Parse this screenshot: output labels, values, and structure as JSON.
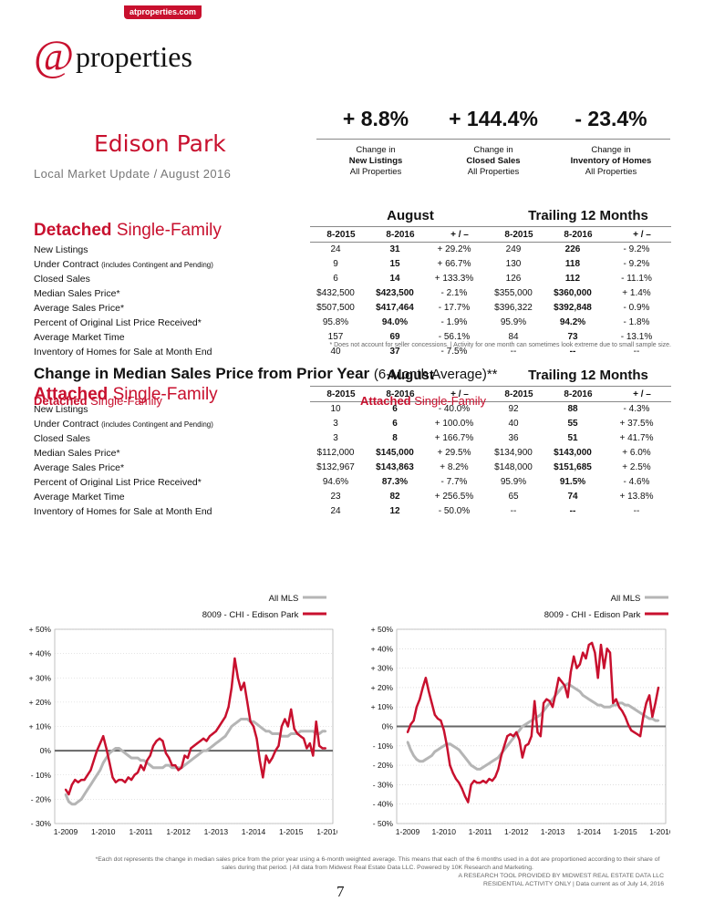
{
  "brand": {
    "tag": "atproperties.com",
    "at": "@",
    "name": "properties"
  },
  "header": {
    "city": "Edison Park",
    "subtitle": "Local Market Update / August 2016"
  },
  "kpis": [
    {
      "value": "+ 8.8%",
      "l1": "Change in",
      "l2": "New Listings",
      "l3": "All Properties"
    },
    {
      "value": "+ 144.4%",
      "l1": "Change in",
      "l2": "Closed Sales",
      "l3": "All Properties"
    },
    {
      "value": "- 23.4%",
      "l1": "Change in",
      "l2": "Inventory of Homes",
      "l3": "All Properties"
    }
  ],
  "group_labels": {
    "august": "August",
    "trailing": "Trailing 12 Months"
  },
  "columns": [
    "8-2015",
    "8-2016",
    "+ / –",
    "8-2015",
    "8-2016",
    "+ / –"
  ],
  "row_labels": [
    "New Listings",
    "Under Contract",
    "(includes Contingent and Pending)",
    "Closed Sales",
    "Median Sales Price*",
    "Average Sales Price*",
    "Percent of Original List Price Received*",
    "Average Market Time",
    "Inventory of Homes for Sale at Month End"
  ],
  "detached": {
    "title_bold": "Detached",
    "title_rest": "Single-Family",
    "rows": [
      [
        "24",
        "31",
        "+ 29.2%",
        "249",
        "226",
        "- 9.2%"
      ],
      [
        "9",
        "15",
        "+ 66.7%",
        "130",
        "118",
        "- 9.2%"
      ],
      [
        "6",
        "14",
        "+ 133.3%",
        "126",
        "112",
        "- 11.1%"
      ],
      [
        "$432,500",
        "$423,500",
        "- 2.1%",
        "$355,000",
        "$360,000",
        "+ 1.4%"
      ],
      [
        "$507,500",
        "$417,464",
        "- 17.7%",
        "$396,322",
        "$392,848",
        "- 0.9%"
      ],
      [
        "95.8%",
        "94.0%",
        "- 1.9%",
        "95.9%",
        "94.2%",
        "- 1.8%"
      ],
      [
        "157",
        "69",
        "- 56.1%",
        "84",
        "73",
        "- 13.1%"
      ],
      [
        "40",
        "37",
        "- 7.5%",
        "--",
        "--",
        "--"
      ]
    ]
  },
  "attached": {
    "title_bold": "Attached",
    "title_rest": "Single-Family",
    "rows": [
      [
        "10",
        "6",
        "- 40.0%",
        "92",
        "88",
        "- 4.3%"
      ],
      [
        "3",
        "6",
        "+ 100.0%",
        "40",
        "55",
        "+ 37.5%"
      ],
      [
        "3",
        "8",
        "+ 166.7%",
        "36",
        "51",
        "+ 41.7%"
      ],
      [
        "$112,000",
        "$145,000",
        "+ 29.5%",
        "$134,900",
        "$143,000",
        "+ 6.0%"
      ],
      [
        "$132,967",
        "$143,863",
        "+ 8.2%",
        "$148,000",
        "$151,685",
        "+ 2.5%"
      ],
      [
        "94.6%",
        "87.3%",
        "- 7.7%",
        "95.9%",
        "91.5%",
        "- 4.6%"
      ],
      [
        "23",
        "82",
        "+ 256.5%",
        "65",
        "74",
        "+ 13.8%"
      ],
      [
        "24",
        "12",
        "- 50.0%",
        "--",
        "--",
        "--"
      ]
    ]
  },
  "footnote1": "* Does not account for seller concessions. | Activity for one month can sometimes look extreme due to small sample size.",
  "chart_section": {
    "title": "Change in Median Sales Price from Prior Year",
    "title_suffix": "(6-Month Average)**"
  },
  "chart_data": [
    {
      "type": "line",
      "title_bold": "Detached",
      "title_rest": "Single-Family",
      "legend": [
        "All MLS",
        "8009 - CHI - Edison Park"
      ],
      "ylim": [
        -30,
        50
      ],
      "yticks": [
        "+ 50%",
        "+ 40%",
        "+ 30%",
        "+ 20%",
        "+ 10%",
        "0%",
        "- 10%",
        "- 20%",
        "- 30%"
      ],
      "xticks": [
        "1-2009",
        "1-2010",
        "1-2011",
        "1-2012",
        "1-2013",
        "1-2014",
        "1-2015",
        "1-2016"
      ],
      "colors": {
        "mls": "#b5b5b5",
        "local": "#c8102e"
      },
      "series": [
        {
          "name": "All MLS",
          "values": [
            -18,
            -21,
            -22,
            -22,
            -21,
            -20,
            -18,
            -16,
            -14,
            -12,
            -10,
            -8,
            -5,
            -3,
            -1,
            0,
            1,
            1,
            0,
            -1,
            -2,
            -3,
            -3,
            -3,
            -4,
            -4,
            -5,
            -6,
            -7,
            -7,
            -7,
            -7,
            -6,
            -6,
            -7,
            -7,
            -7,
            -7,
            -6,
            -5,
            -4,
            -3,
            -2,
            -1,
            0,
            0,
            1,
            2,
            3,
            4,
            5,
            6,
            8,
            10,
            11,
            12,
            13,
            13,
            13,
            12,
            12,
            11,
            10,
            9,
            8,
            8,
            7,
            7,
            7,
            6,
            6,
            6,
            7,
            7,
            7,
            8,
            8,
            8,
            8,
            8,
            7,
            7,
            8,
            8
          ]
        },
        {
          "name": "8009 - CHI - Edison Park",
          "values": [
            -16,
            -18,
            -14,
            -12,
            -13,
            -12,
            -12,
            -10,
            -8,
            -4,
            0,
            3,
            6,
            1,
            -5,
            -11,
            -13,
            -12,
            -12,
            -13,
            -11,
            -12,
            -10,
            -9,
            -6,
            -8,
            -4,
            -2,
            2,
            4,
            5,
            4,
            -1,
            -3,
            -6,
            -6,
            -8,
            -7,
            -2,
            -3,
            1,
            2,
            3,
            4,
            5,
            4,
            6,
            7,
            8,
            10,
            12,
            14,
            18,
            26,
            38,
            30,
            25,
            28,
            20,
            12,
            10,
            5,
            -4,
            -11,
            -2,
            -5,
            -3,
            0,
            2,
            10,
            13,
            10,
            17,
            9,
            7,
            6,
            5,
            1,
            3,
            -2,
            12,
            2,
            1,
            1
          ]
        }
      ]
    },
    {
      "type": "line",
      "title_bold": "Attached",
      "title_rest": "Single-Family",
      "legend": [
        "All MLS",
        "8009 - CHI - Edison Park"
      ],
      "ylim": [
        -50,
        50
      ],
      "yticks": [
        "+ 50%",
        "+ 40%",
        "+ 30%",
        "+ 20%",
        "+ 10%",
        "0%",
        "- 10%",
        "- 20%",
        "- 30%",
        "- 40%",
        "- 50%"
      ],
      "xticks": [
        "1-2009",
        "1-2010",
        "1-2011",
        "1-2012",
        "1-2013",
        "1-2014",
        "1-2015",
        "1-2016"
      ],
      "colors": {
        "mls": "#b5b5b5",
        "local": "#c8102e"
      },
      "series": [
        {
          "name": "All MLS",
          "values": [
            -8,
            -12,
            -15,
            -17,
            -18,
            -18,
            -17,
            -16,
            -15,
            -13,
            -12,
            -11,
            -10,
            -9,
            -9,
            -10,
            -11,
            -12,
            -14,
            -16,
            -18,
            -20,
            -21,
            -22,
            -22,
            -21,
            -20,
            -19,
            -18,
            -17,
            -16,
            -14,
            -12,
            -10,
            -8,
            -6,
            -4,
            -2,
            0,
            1,
            2,
            3,
            4,
            5,
            6,
            8,
            10,
            12,
            14,
            16,
            18,
            20,
            21,
            22,
            21,
            20,
            19,
            18,
            16,
            15,
            14,
            13,
            12,
            11,
            11,
            10,
            10,
            10,
            11,
            11,
            12,
            12,
            11,
            11,
            10,
            9,
            8,
            7,
            6,
            5,
            4,
            4,
            3,
            3
          ]
        },
        {
          "name": "8009 - CHI - Edison Park",
          "values": [
            -3,
            1,
            3,
            10,
            14,
            20,
            25,
            18,
            12,
            6,
            4,
            3,
            -2,
            -10,
            -20,
            -24,
            -27,
            -29,
            -32,
            -36,
            -39,
            -30,
            -28,
            -29,
            -29,
            -28,
            -29,
            -27,
            -28,
            -26,
            -22,
            -15,
            -10,
            -5,
            -4,
            -5,
            -3,
            -7,
            -16,
            -10,
            -9,
            -5,
            13,
            -3,
            -5,
            12,
            14,
            13,
            10,
            17,
            25,
            23,
            21,
            15,
            28,
            36,
            30,
            32,
            38,
            35,
            42,
            43,
            38,
            25,
            42,
            30,
            40,
            38,
            12,
            14,
            10,
            8,
            5,
            1,
            -2,
            -3,
            -4,
            -5,
            5,
            12,
            16,
            5,
            12,
            20
          ]
        }
      ]
    }
  ],
  "footnote2": "*Each dot represents the change in median sales price from the prior year using a 6-month weighted average. This means that each of the 6 months used in a dot are proportioned according to their share of sales during that period. | All data from Midwest Real Estate Data LLC. Powered by 10K Research and Marketing.",
  "footnote3a": "A RESEARCH TOOL PROVIDED BY MIDWEST REAL ESTATE DATA LLC",
  "footnote3b": "RESIDENTIAL ACTIVITY ONLY | Data current as of July 14, 2016",
  "page_number": "7"
}
